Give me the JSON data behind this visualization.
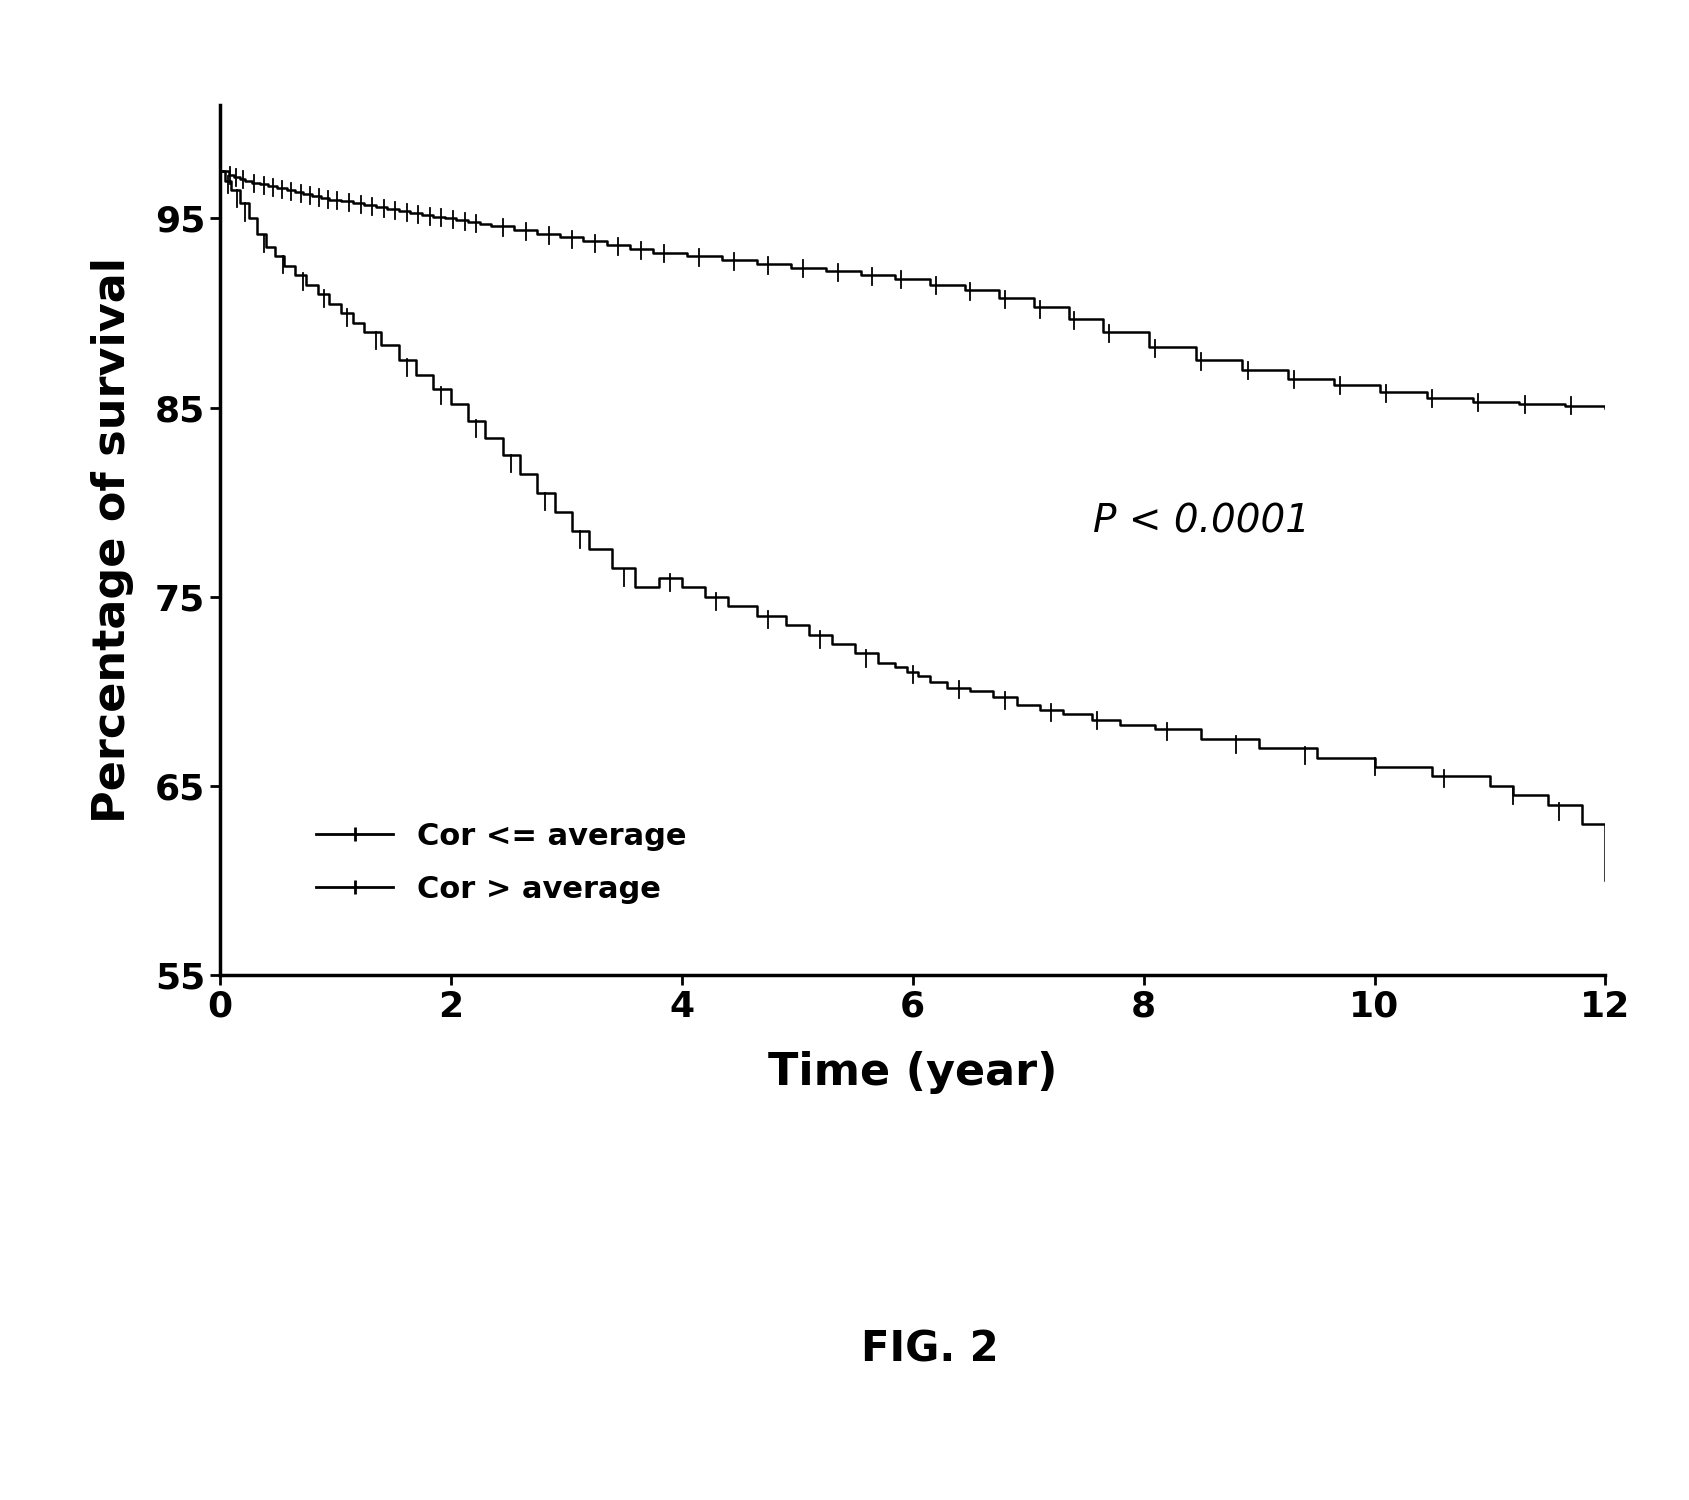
{
  "title": "",
  "xlabel": "Time (year)",
  "ylabel": "Percentage of survival",
  "fig_label": "FIG. 2",
  "pvalue_text": "P < 0.0001",
  "pvalue_x": 8.5,
  "pvalue_y": 79,
  "xlim": [
    0,
    12
  ],
  "ylim": [
    55,
    101
  ],
  "xticks": [
    0,
    2,
    4,
    6,
    8,
    10,
    12
  ],
  "yticks": [
    55,
    65,
    75,
    85,
    95
  ],
  "legend_labels": [
    "Cor <= average",
    "Cor > average"
  ],
  "line_color": "#000000",
  "background_color": "#ffffff",
  "xlabel_fontsize": 32,
  "ylabel_fontsize": 32,
  "tick_fontsize": 26,
  "legend_fontsize": 22,
  "pvalue_fontsize": 28,
  "fig_label_fontsize": 30,
  "curve1_x": [
    0,
    0.08,
    0.12,
    0.18,
    0.22,
    0.28,
    0.35,
    0.42,
    0.5,
    0.58,
    0.65,
    0.72,
    0.8,
    0.88,
    0.95,
    1.05,
    1.15,
    1.25,
    1.35,
    1.45,
    1.55,
    1.65,
    1.75,
    1.85,
    1.95,
    2.05,
    2.15,
    2.25,
    2.35,
    2.55,
    2.75,
    2.95,
    3.15,
    3.35,
    3.55,
    3.75,
    4.05,
    4.35,
    4.65,
    4.95,
    5.25,
    5.55,
    5.85,
    6.15,
    6.45,
    6.75,
    7.05,
    7.35,
    7.65,
    8.05,
    8.45,
    8.85,
    9.25,
    9.65,
    10.05,
    10.45,
    10.85,
    11.25,
    11.65,
    12.0
  ],
  "curve1_y": [
    97.5,
    97.3,
    97.2,
    97.1,
    97.0,
    96.9,
    96.8,
    96.7,
    96.6,
    96.5,
    96.4,
    96.3,
    96.2,
    96.1,
    96.0,
    95.9,
    95.8,
    95.7,
    95.6,
    95.5,
    95.4,
    95.3,
    95.2,
    95.1,
    95.0,
    94.9,
    94.8,
    94.7,
    94.6,
    94.4,
    94.2,
    94.0,
    93.8,
    93.6,
    93.4,
    93.2,
    93.0,
    92.8,
    92.6,
    92.4,
    92.2,
    92.0,
    91.8,
    91.5,
    91.2,
    90.8,
    90.3,
    89.7,
    89.0,
    88.2,
    87.5,
    87.0,
    86.5,
    86.2,
    85.8,
    85.5,
    85.3,
    85.2,
    85.1,
    85.0
  ],
  "curve2_x": [
    0,
    0.05,
    0.1,
    0.18,
    0.25,
    0.32,
    0.4,
    0.48,
    0.56,
    0.65,
    0.75,
    0.85,
    0.95,
    1.05,
    1.15,
    1.25,
    1.4,
    1.55,
    1.7,
    1.85,
    2.0,
    2.15,
    2.3,
    2.45,
    2.6,
    2.75,
    2.9,
    3.05,
    3.2,
    3.4,
    3.6,
    3.8,
    4.0,
    4.2,
    4.4,
    4.65,
    4.9,
    5.1,
    5.3,
    5.5,
    5.7,
    5.85,
    5.95,
    6.05,
    6.15,
    6.3,
    6.5,
    6.7,
    6.9,
    7.1,
    7.3,
    7.55,
    7.8,
    8.1,
    8.5,
    9.0,
    9.5,
    10.0,
    10.5,
    11.0,
    11.2,
    11.5,
    11.8,
    12.0
  ],
  "curve2_y": [
    97.5,
    97.0,
    96.5,
    95.8,
    95.0,
    94.2,
    93.5,
    93.0,
    92.5,
    92.0,
    91.5,
    91.0,
    90.5,
    90.0,
    89.5,
    89.0,
    88.3,
    87.5,
    86.7,
    86.0,
    85.2,
    84.3,
    83.4,
    82.5,
    81.5,
    80.5,
    79.5,
    78.5,
    77.5,
    76.5,
    75.5,
    76.0,
    75.5,
    75.0,
    74.5,
    74.0,
    73.5,
    73.0,
    72.5,
    72.0,
    71.5,
    71.3,
    71.0,
    70.8,
    70.5,
    70.2,
    70.0,
    69.7,
    69.3,
    69.0,
    68.8,
    68.5,
    68.2,
    68.0,
    67.5,
    67.0,
    66.5,
    66.0,
    65.5,
    65.0,
    64.5,
    64.0,
    63.0,
    60.0
  ],
  "censor1_x": [
    0.09,
    0.14,
    0.2,
    0.3,
    0.38,
    0.46,
    0.54,
    0.62,
    0.7,
    0.78,
    0.86,
    0.94,
    1.02,
    1.12,
    1.22,
    1.32,
    1.42,
    1.52,
    1.62,
    1.72,
    1.82,
    1.92,
    2.02,
    2.12,
    2.22,
    2.45,
    2.65,
    2.85,
    3.05,
    3.25,
    3.45,
    3.65,
    3.85,
    4.15,
    4.45,
    4.75,
    5.05,
    5.35,
    5.65,
    5.9,
    6.2,
    6.5,
    6.8,
    7.1,
    7.4,
    7.7,
    8.1,
    8.5,
    8.9,
    9.3,
    9.7,
    10.1,
    10.5,
    10.9,
    11.3,
    11.7
  ],
  "censor2_x": [
    0.07,
    0.15,
    0.22,
    0.38,
    0.55,
    0.72,
    0.9,
    1.1,
    1.35,
    1.62,
    1.92,
    2.22,
    2.52,
    2.82,
    3.12,
    3.5,
    3.9,
    4.3,
    4.75,
    5.2,
    5.6,
    6.0,
    6.4,
    6.8,
    7.2,
    7.6,
    8.2,
    8.8,
    9.4,
    10.0,
    10.6,
    11.2,
    11.6
  ]
}
